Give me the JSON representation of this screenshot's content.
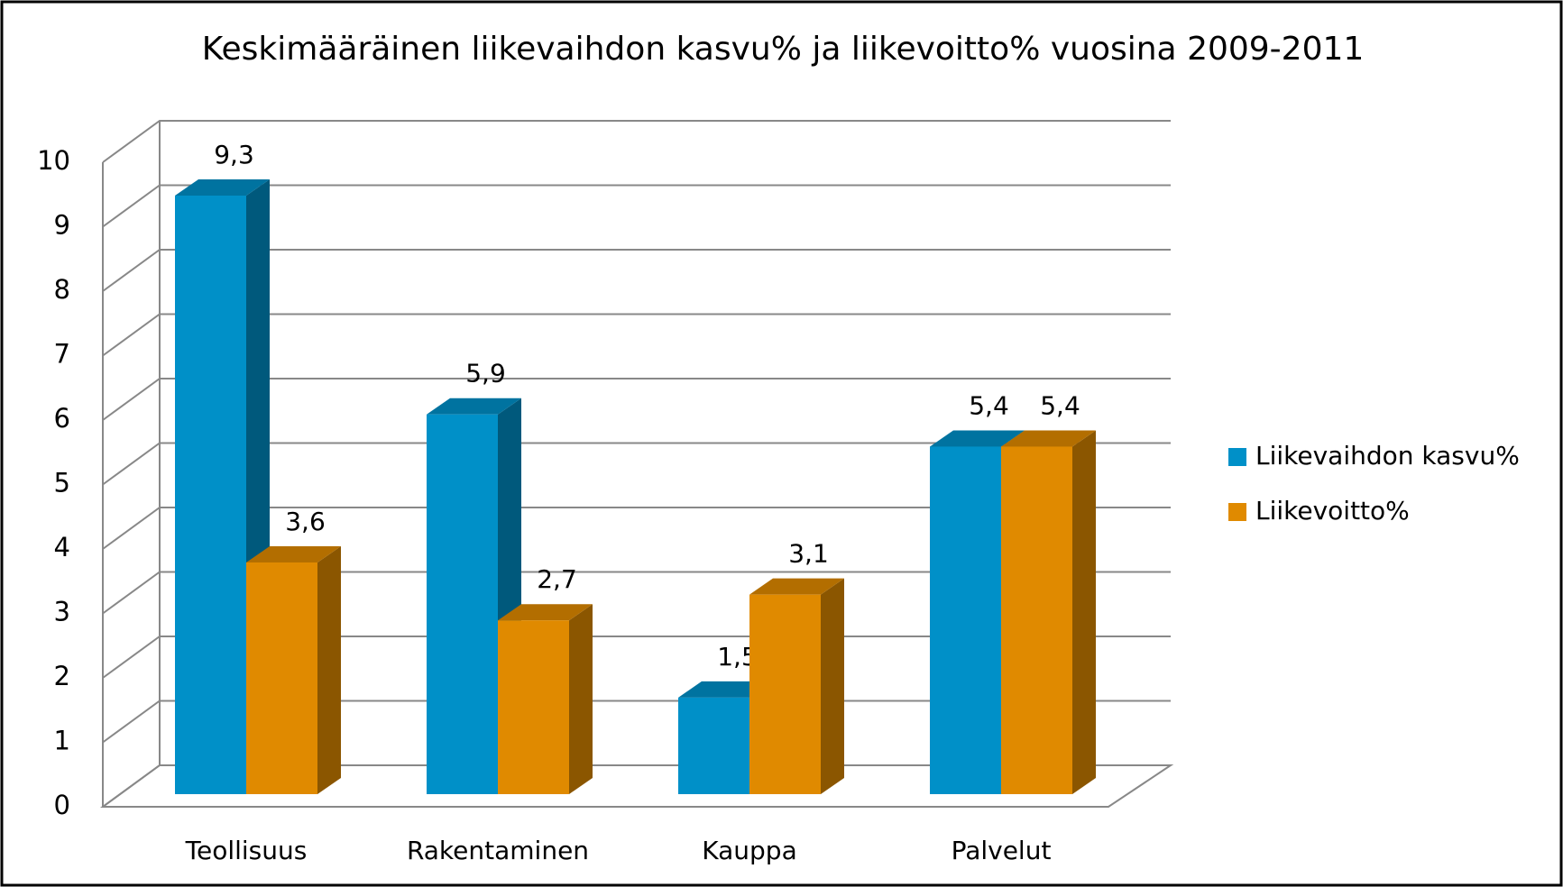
{
  "chart_data": {
    "type": "bar3d",
    "title": "Keskimääräinen liikevaihdon kasvu% ja liikevoitto% vuosina 2009-2011",
    "categories": [
      "Teollisuus",
      "Rakentaminen",
      "Kauppa",
      "Palvelut"
    ],
    "series": [
      {
        "name": "Liikevaihdon kasvu%",
        "color": "#0090c8",
        "values": [
          9.3,
          5.9,
          1.5,
          5.4
        ],
        "value_labels": [
          "9,3",
          "5,9",
          "1,5",
          "5,4"
        ]
      },
      {
        "name": "Liikevoitto%",
        "color": "#e08a00",
        "values": [
          3.6,
          2.7,
          3.1,
          5.4
        ],
        "value_labels": [
          "3,6",
          "2,7",
          "3,1",
          "5,4"
        ]
      }
    ],
    "ylim": [
      0,
      10
    ],
    "yticks": [
      0,
      1,
      2,
      3,
      4,
      5,
      6,
      7,
      8,
      9,
      10
    ],
    "grid": true,
    "legend": "right"
  }
}
